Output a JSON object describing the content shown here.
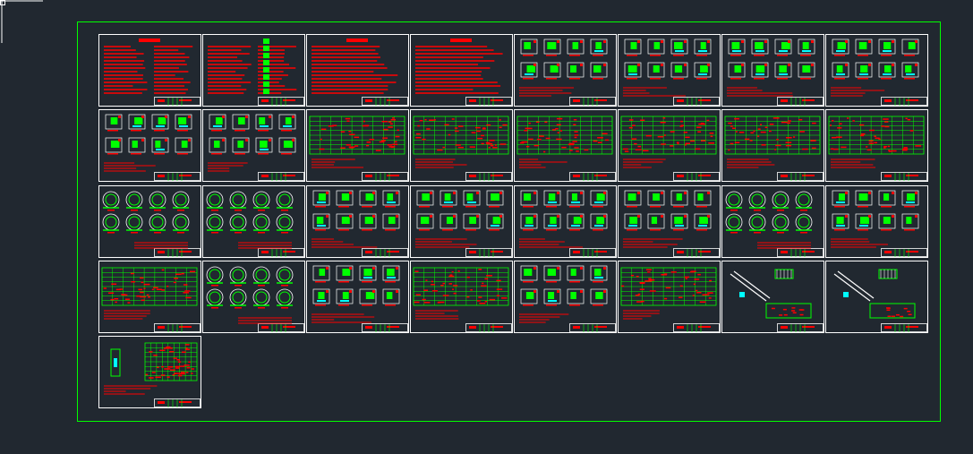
{
  "viewport": {
    "background": "#212830"
  },
  "colors": {
    "layout_border": "#00ff00",
    "sheet_frame": "#ffffff",
    "annotation": "#ff0000",
    "detail": "#00ff00",
    "hatch": "#00ffff",
    "crosshair": "#ffffff"
  },
  "cursor": {
    "icon": "crosshair-cursor-icon"
  },
  "sheets": [
    {
      "kind": "cover-text"
    },
    {
      "kind": "legend"
    },
    {
      "kind": "notes"
    },
    {
      "kind": "notes"
    },
    {
      "kind": "details"
    },
    {
      "kind": "details"
    },
    {
      "kind": "details"
    },
    {
      "kind": "details"
    },
    {
      "kind": "details"
    },
    {
      "kind": "details"
    },
    {
      "kind": "table"
    },
    {
      "kind": "table"
    },
    {
      "kind": "table"
    },
    {
      "kind": "table"
    },
    {
      "kind": "table"
    },
    {
      "kind": "table"
    },
    {
      "kind": "circles"
    },
    {
      "kind": "circles"
    },
    {
      "kind": "details"
    },
    {
      "kind": "details"
    },
    {
      "kind": "details"
    },
    {
      "kind": "details"
    },
    {
      "kind": "circles"
    },
    {
      "kind": "details"
    },
    {
      "kind": "table"
    },
    {
      "kind": "circles"
    },
    {
      "kind": "details"
    },
    {
      "kind": "table"
    },
    {
      "kind": "details"
    },
    {
      "kind": "table"
    },
    {
      "kind": "isometric"
    },
    {
      "kind": "isometric"
    },
    {
      "kind": "table-detail"
    }
  ]
}
